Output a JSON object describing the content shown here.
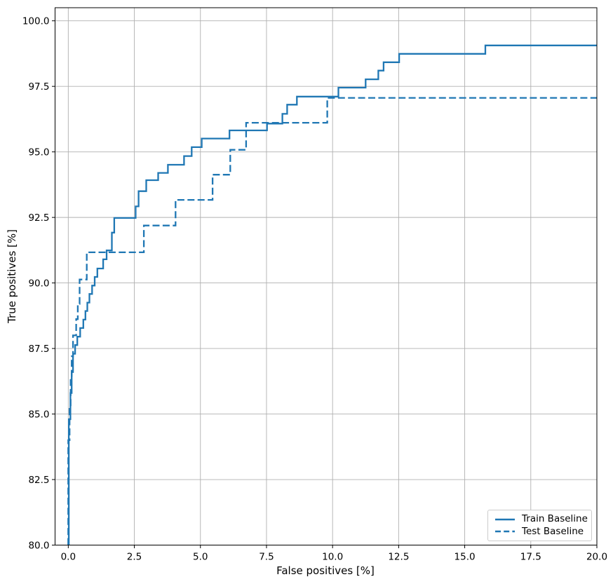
{
  "chart_data": {
    "type": "line",
    "subtype": "step-roc",
    "title": "",
    "xlabel": "False positives [%]",
    "ylabel": "True positives [%]",
    "xlim": [
      -0.5,
      20
    ],
    "ylim": [
      80,
      100.5
    ],
    "grid": true,
    "grid_color": "#b0b0b0",
    "spine_color": "#000000",
    "line_color": "#1f77b4",
    "legend_position": "lower right",
    "xticks": {
      "values": [
        0,
        2.5,
        5,
        7.5,
        10,
        12.5,
        15,
        17.5,
        20
      ],
      "labels": [
        "0.0",
        "2.5",
        "5.0",
        "7.5",
        "10.0",
        "12.5",
        "15.0",
        "17.5",
        "20.0"
      ]
    },
    "yticks": {
      "values": [
        80,
        82.5,
        85,
        87.5,
        90,
        92.5,
        95,
        97.5,
        100
      ],
      "labels": [
        "80.0",
        "82.5",
        "85.0",
        "87.5",
        "90.0",
        "92.5",
        "95.0",
        "97.5",
        "100.0"
      ]
    },
    "series": [
      {
        "name": "Train Baseline",
        "style": "solid",
        "color": "#1f77b4",
        "points": [
          [
            0.02,
            80
          ],
          [
            0.02,
            84.8
          ],
          [
            0.08,
            84.8
          ],
          [
            0.08,
            85.8
          ],
          [
            0.13,
            85.8
          ],
          [
            0.13,
            86.6
          ],
          [
            0.18,
            86.6
          ],
          [
            0.18,
            87.3
          ],
          [
            0.26,
            87.3
          ],
          [
            0.26,
            87.63
          ],
          [
            0.34,
            87.63
          ],
          [
            0.34,
            87.95
          ],
          [
            0.45,
            87.95
          ],
          [
            0.45,
            88.28
          ],
          [
            0.57,
            88.28
          ],
          [
            0.57,
            88.6
          ],
          [
            0.65,
            88.6
          ],
          [
            0.65,
            88.93
          ],
          [
            0.72,
            88.93
          ],
          [
            0.72,
            89.25
          ],
          [
            0.8,
            89.25
          ],
          [
            0.8,
            89.58
          ],
          [
            0.9,
            89.58
          ],
          [
            0.9,
            89.9
          ],
          [
            1.0,
            89.9
          ],
          [
            1.0,
            90.23
          ],
          [
            1.1,
            90.23
          ],
          [
            1.1,
            90.55
          ],
          [
            1.32,
            90.55
          ],
          [
            1.32,
            90.9
          ],
          [
            1.45,
            90.9
          ],
          [
            1.45,
            91.24
          ],
          [
            1.65,
            91.24
          ],
          [
            1.65,
            91.92
          ],
          [
            1.74,
            91.92
          ],
          [
            1.74,
            92.48
          ],
          [
            2.55,
            92.48
          ],
          [
            2.55,
            92.92
          ],
          [
            2.66,
            92.92
          ],
          [
            2.66,
            93.5
          ],
          [
            2.95,
            93.5
          ],
          [
            2.95,
            93.92
          ],
          [
            3.4,
            93.92
          ],
          [
            3.4,
            94.2
          ],
          [
            3.77,
            94.2
          ],
          [
            3.77,
            94.51
          ],
          [
            4.38,
            94.51
          ],
          [
            4.38,
            94.84
          ],
          [
            4.67,
            94.84
          ],
          [
            4.67,
            95.18
          ],
          [
            5.05,
            95.18
          ],
          [
            5.05,
            95.51
          ],
          [
            6.1,
            95.51
          ],
          [
            6.1,
            95.82
          ],
          [
            7.52,
            95.82
          ],
          [
            7.52,
            96.08
          ],
          [
            8.1,
            96.08
          ],
          [
            8.1,
            96.45
          ],
          [
            8.28,
            96.45
          ],
          [
            8.28,
            96.8
          ],
          [
            8.65,
            96.8
          ],
          [
            8.65,
            97.11
          ],
          [
            10.22,
            97.11
          ],
          [
            10.22,
            97.45
          ],
          [
            11.25,
            97.45
          ],
          [
            11.25,
            97.77
          ],
          [
            11.73,
            97.77
          ],
          [
            11.73,
            98.1
          ],
          [
            11.93,
            98.1
          ],
          [
            11.93,
            98.42
          ],
          [
            12.52,
            98.42
          ],
          [
            12.52,
            98.74
          ],
          [
            15.78,
            98.74
          ],
          [
            15.78,
            99.06
          ],
          [
            20,
            99.06
          ]
        ]
      },
      {
        "name": "Test Baseline",
        "style": "dashed",
        "color": "#1f77b4",
        "points": [
          [
            0.0,
            80
          ],
          [
            0.0,
            84.0
          ],
          [
            0.05,
            84.0
          ],
          [
            0.05,
            85.2
          ],
          [
            0.09,
            85.2
          ],
          [
            0.09,
            86.3
          ],
          [
            0.13,
            86.3
          ],
          [
            0.13,
            87.2
          ],
          [
            0.18,
            87.2
          ],
          [
            0.18,
            88.0
          ],
          [
            0.3,
            88.0
          ],
          [
            0.3,
            88.62
          ],
          [
            0.36,
            88.62
          ],
          [
            0.36,
            89.2
          ],
          [
            0.43,
            89.2
          ],
          [
            0.43,
            90.13
          ],
          [
            0.7,
            90.13
          ],
          [
            0.7,
            91.17
          ],
          [
            2.86,
            91.17
          ],
          [
            2.86,
            92.19
          ],
          [
            4.06,
            92.19
          ],
          [
            4.06,
            93.17
          ],
          [
            5.46,
            93.17
          ],
          [
            5.46,
            94.13
          ],
          [
            6.13,
            94.13
          ],
          [
            6.13,
            95.08
          ],
          [
            6.73,
            95.08
          ],
          [
            6.73,
            96.11
          ],
          [
            9.8,
            96.11
          ],
          [
            9.8,
            97.06
          ],
          [
            20,
            97.06
          ]
        ]
      }
    ]
  },
  "legend": {
    "items": [
      {
        "label": "Train Baseline",
        "line_style": "solid"
      },
      {
        "label": "Test Baseline",
        "line_style": "dashed"
      }
    ]
  }
}
